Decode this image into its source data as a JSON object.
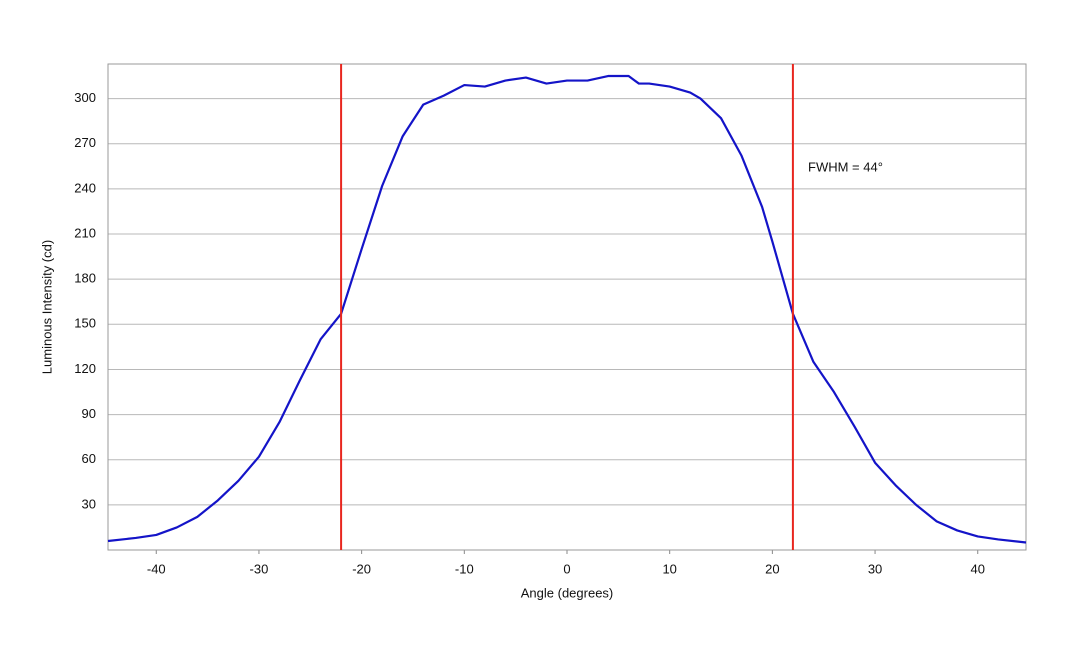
{
  "chart_data": {
    "type": "line",
    "x_label": "Angle (degrees)",
    "y_label": "Luminous Intensity (cd)",
    "annotation": "FWHM = 44°",
    "x": [
      -44.7,
      -42,
      -40,
      -38,
      -36,
      -34,
      -32,
      -30,
      -28,
      -26,
      -24,
      -22,
      -20,
      -18,
      -16,
      -14,
      -12,
      -10,
      -8,
      -6,
      -4,
      -2,
      0,
      2,
      4,
      6,
      7,
      8,
      10,
      12,
      13,
      15,
      17,
      19,
      20,
      22,
      24,
      26,
      28,
      30,
      32,
      34,
      36,
      38,
      40,
      42,
      44.7
    ],
    "values": [
      6,
      8,
      10,
      15,
      22,
      33,
      46,
      62,
      85,
      113,
      140,
      157,
      200,
      242,
      275,
      296,
      302,
      309,
      308,
      312,
      314,
      310,
      312,
      312,
      315,
      315,
      310,
      310,
      308,
      304,
      300,
      287,
      262,
      228,
      205,
      157,
      125,
      105,
      82,
      58,
      43,
      30,
      19,
      13,
      9,
      7,
      5
    ],
    "color": "#1414c8",
    "vlines": [
      -22,
      22
    ],
    "vline_color": "#e8261e",
    "xlim": [
      -44.7,
      44.7
    ],
    "ylim": [
      0,
      323
    ],
    "xticks": [
      -40,
      -30,
      -20,
      -10,
      0,
      10,
      20,
      30,
      40
    ],
    "yticks": [
      30,
      60,
      90,
      120,
      150,
      180,
      210,
      240,
      270,
      300
    ],
    "grid": true
  }
}
